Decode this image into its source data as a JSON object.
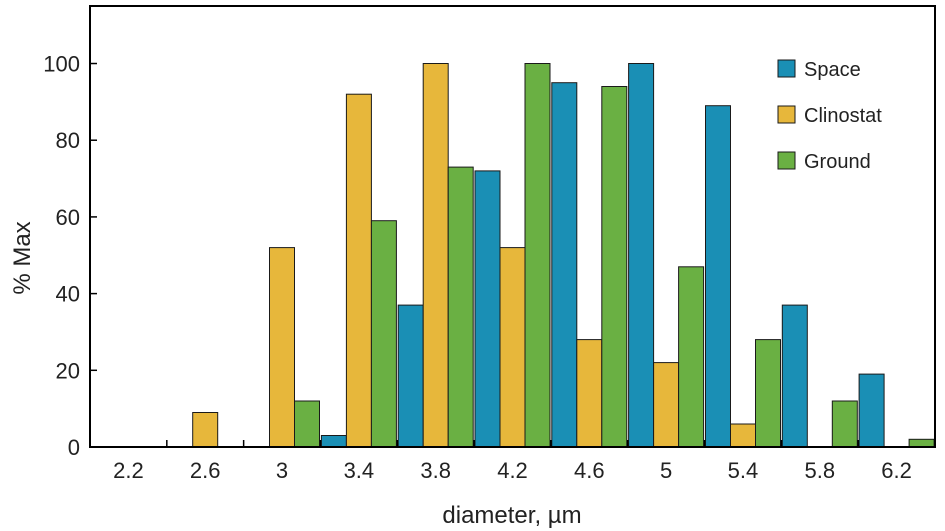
{
  "chart_data": {
    "type": "bar",
    "categories": [
      "2.2",
      "2.6",
      "3",
      "3.4",
      "3.8",
      "4.2",
      "4.6",
      "5",
      "5.4",
      "5.8",
      "6.2"
    ],
    "series": [
      {
        "name": "Space",
        "color": "#1a8fb5",
        "values": [
          0,
          0,
          0,
          3,
          37,
          72,
          95,
          100,
          89,
          37,
          19
        ]
      },
      {
        "name": "Clinostat",
        "color": "#e7b73b",
        "values": [
          0,
          9,
          52,
          92,
          100,
          52,
          28,
          22,
          6,
          0,
          0
        ]
      },
      {
        "name": "Ground",
        "color": "#6ab043",
        "values": [
          0,
          0,
          12,
          59,
          73,
          100,
          94,
          47,
          28,
          12,
          2
        ]
      }
    ],
    "xlabel": "diameter, µm",
    "ylabel": "% Max",
    "ylim": [
      0,
      115
    ],
    "yticks": [
      0,
      20,
      40,
      60,
      80,
      100
    ],
    "grid": false,
    "legend_position": "top-right"
  }
}
